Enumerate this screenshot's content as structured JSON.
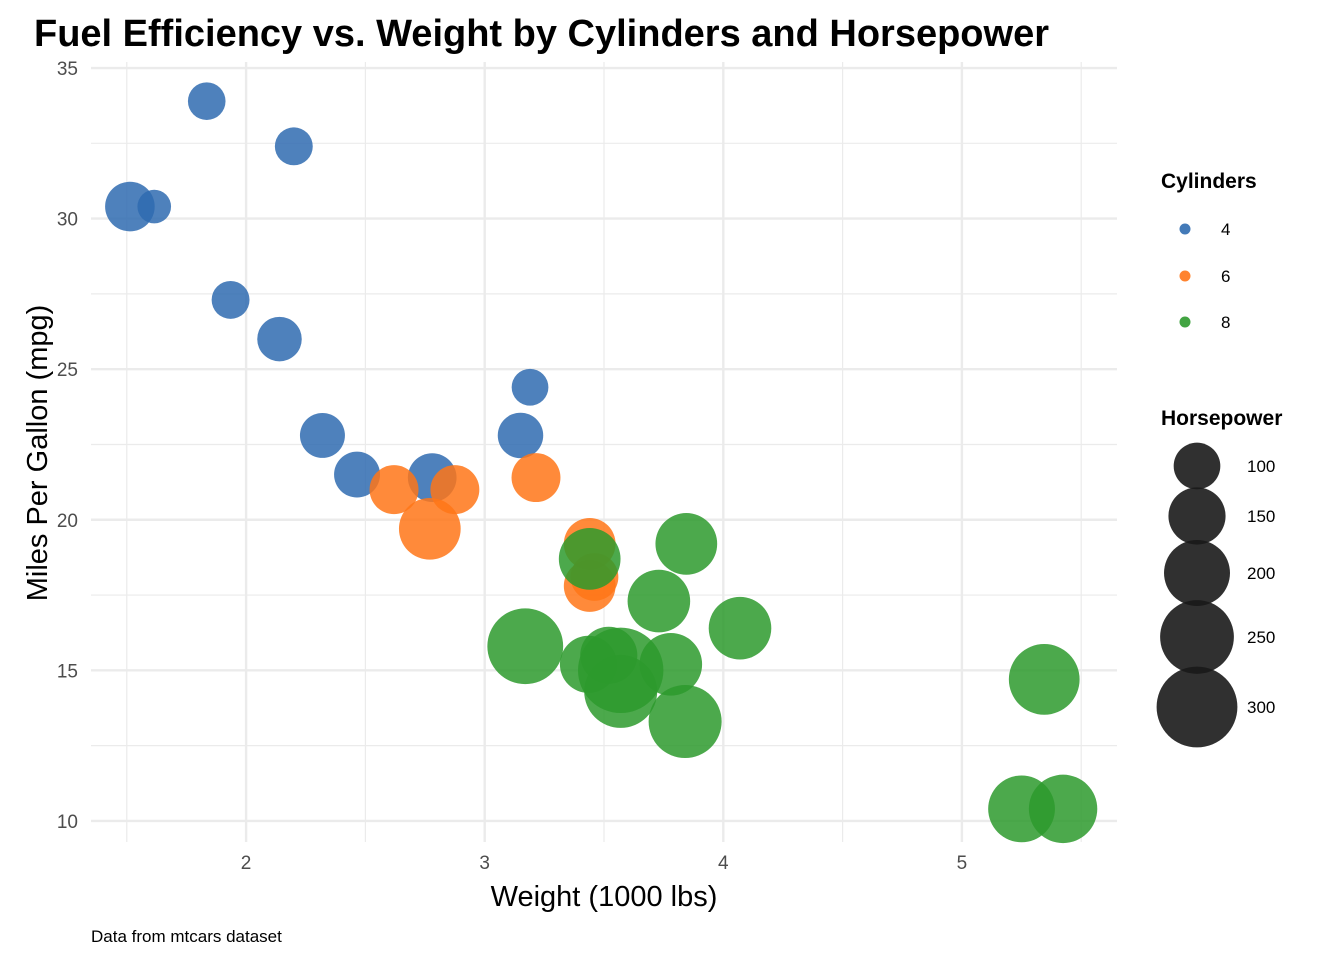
{
  "chart_data": {
    "type": "scatter",
    "title": "Fuel Efficiency vs. Weight by Cylinders and Horsepower",
    "xlabel": "Weight (1000 lbs)",
    "ylabel": "Miles Per Gallon (mpg)",
    "caption": "Data from mtcars dataset",
    "xlim": [
      1.35,
      5.65
    ],
    "ylim": [
      9.3,
      35.2
    ],
    "x_ticks": [
      {
        "value": 2,
        "label": "2"
      },
      {
        "value": 3,
        "label": "3"
      },
      {
        "value": 4,
        "label": "4"
      },
      {
        "value": 5,
        "label": "5"
      }
    ],
    "y_ticks": [
      {
        "value": 10,
        "label": "10"
      },
      {
        "value": 15,
        "label": "15"
      },
      {
        "value": 20,
        "label": "20"
      },
      {
        "value": 25,
        "label": "25"
      },
      {
        "value": 30,
        "label": "30"
      },
      {
        "value": 35,
        "label": "35"
      }
    ],
    "grid": true,
    "legend_position": "right",
    "color_legend": {
      "title": "Cylinders",
      "entries": [
        {
          "label": "4",
          "color": "#2f6bb0"
        },
        {
          "label": "6",
          "color": "#ff7518"
        },
        {
          "label": "8",
          "color": "#2d9a2d"
        }
      ]
    },
    "size_legend": {
      "title": "Horsepower",
      "color": "#1a1a1a",
      "entries": [
        {
          "label": "100",
          "value": 100
        },
        {
          "label": "150",
          "value": 150
        },
        {
          "label": "200",
          "value": 200
        },
        {
          "label": "250",
          "value": 250
        },
        {
          "label": "300",
          "value": 300
        }
      ]
    },
    "series": [
      {
        "name": "4",
        "color": "#2f6bb0",
        "points": [
          {
            "x": 2.32,
            "y": 22.8,
            "hp": 93
          },
          {
            "x": 3.19,
            "y": 24.4,
            "hp": 62
          },
          {
            "x": 3.15,
            "y": 22.8,
            "hp": 95
          },
          {
            "x": 2.2,
            "y": 32.4,
            "hp": 66
          },
          {
            "x": 1.615,
            "y": 30.4,
            "hp": 52
          },
          {
            "x": 1.835,
            "y": 33.9,
            "hp": 65
          },
          {
            "x": 2.465,
            "y": 21.5,
            "hp": 97
          },
          {
            "x": 1.935,
            "y": 27.3,
            "hp": 66
          },
          {
            "x": 2.14,
            "y": 26.0,
            "hp": 91
          },
          {
            "x": 1.513,
            "y": 30.4,
            "hp": 113
          },
          {
            "x": 2.78,
            "y": 21.4,
            "hp": 109
          }
        ]
      },
      {
        "name": "6",
        "color": "#ff7518",
        "points": [
          {
            "x": 2.62,
            "y": 21.0,
            "hp": 110
          },
          {
            "x": 2.875,
            "y": 21.0,
            "hp": 110
          },
          {
            "x": 3.215,
            "y": 21.4,
            "hp": 110
          },
          {
            "x": 3.46,
            "y": 18.1,
            "hp": 105
          },
          {
            "x": 3.44,
            "y": 19.2,
            "hp": 123
          },
          {
            "x": 3.44,
            "y": 17.8,
            "hp": 123
          },
          {
            "x": 2.77,
            "y": 19.7,
            "hp": 175
          }
        ]
      },
      {
        "name": "8",
        "color": "#2d9a2d",
        "points": [
          {
            "x": 3.44,
            "y": 18.7,
            "hp": 175
          },
          {
            "x": 3.57,
            "y": 14.3,
            "hp": 245
          },
          {
            "x": 4.07,
            "y": 16.4,
            "hp": 180
          },
          {
            "x": 3.73,
            "y": 17.3,
            "hp": 180
          },
          {
            "x": 3.78,
            "y": 15.2,
            "hp": 180
          },
          {
            "x": 5.25,
            "y": 10.4,
            "hp": 205
          },
          {
            "x": 5.424,
            "y": 10.4,
            "hp": 215
          },
          {
            "x": 5.345,
            "y": 14.7,
            "hp": 230
          },
          {
            "x": 3.52,
            "y": 15.5,
            "hp": 150
          },
          {
            "x": 3.435,
            "y": 15.2,
            "hp": 150
          },
          {
            "x": 3.84,
            "y": 13.3,
            "hp": 245
          },
          {
            "x": 3.845,
            "y": 19.2,
            "hp": 175
          },
          {
            "x": 3.17,
            "y": 15.8,
            "hp": 264
          },
          {
            "x": 3.57,
            "y": 15.0,
            "hp": 335
          }
        ]
      }
    ]
  }
}
